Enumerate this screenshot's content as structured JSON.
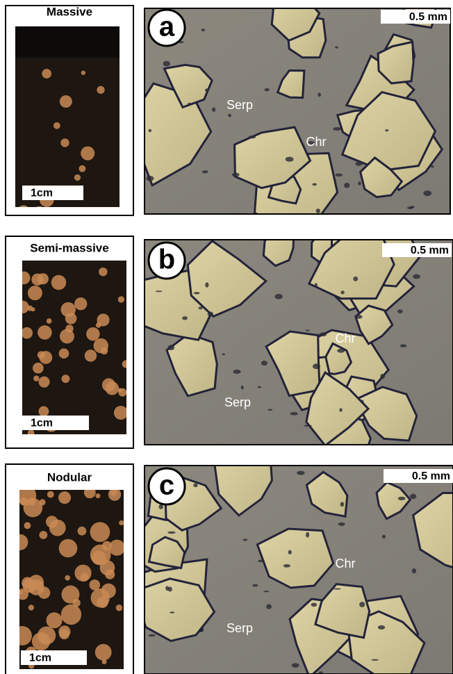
{
  "panels": [
    {
      "sample": "Massive",
      "sample_scale": "1cm",
      "letter": "a",
      "micro_scale": "0.5 mm",
      "serp": "Serp",
      "chr": "Chr"
    },
    {
      "sample": "Semi-massive",
      "sample_scale": "1cm",
      "letter": "b",
      "micro_scale": "0.5 mm",
      "serp": "Serp",
      "chr": "Chr"
    },
    {
      "sample": "Nodular",
      "sample_scale": "1cm",
      "letter": "c",
      "micro_scale": "0.5 mm",
      "serp": "Serp",
      "chr": "Chr"
    }
  ]
}
